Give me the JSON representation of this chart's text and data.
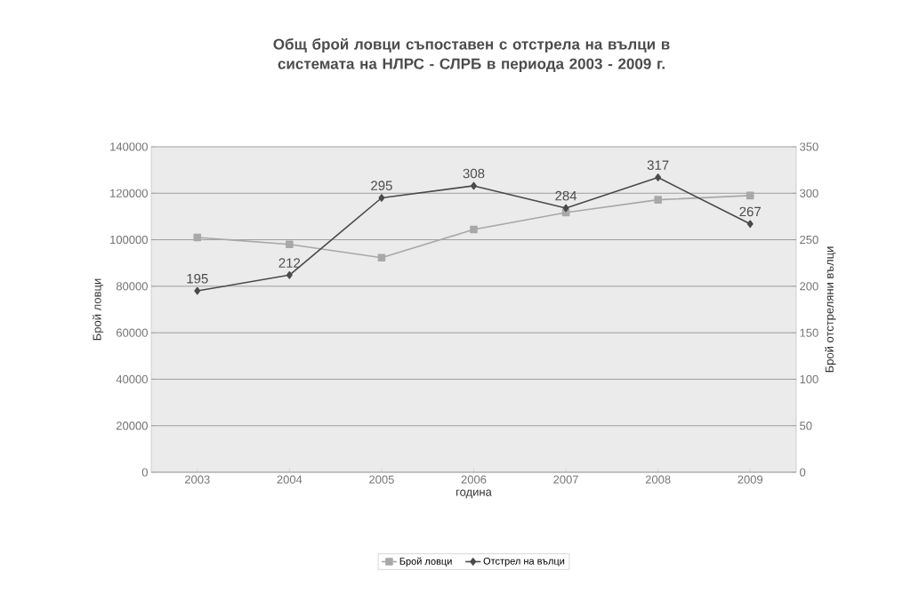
{
  "chart_data": {
    "type": "line",
    "title": "Общ брой ловци съпоставен с отстрела на вълци в системата на НЛРС - СЛРБ в периода 2003 - 2009 г.",
    "xlabel": "година",
    "ylabel": "Брой ловци",
    "y2label": "Брой отстреляни вълци",
    "categories": [
      "2003",
      "2004",
      "2005",
      "2006",
      "2007",
      "2008",
      "2009"
    ],
    "series": [
      {
        "name": "Брой ловци",
        "color": "#a8a8a8",
        "marker": "square",
        "values": [
          101000,
          98000,
          92300,
          104400,
          111700,
          117200,
          119000
        ]
      },
      {
        "name": "Отстрел на вълци",
        "color": "#4a4a4a",
        "marker": "diamond",
        "axis": "y2",
        "values": [
          195,
          212,
          295,
          308,
          284,
          317,
          267
        ],
        "value_labels": [
          "195",
          "212",
          "295",
          "308",
          "284",
          "317",
          "267"
        ]
      }
    ],
    "ylim": [
      0,
      140000
    ],
    "yticks": [
      0,
      20000,
      40000,
      60000,
      80000,
      100000,
      120000,
      140000
    ],
    "y2lim": [
      0,
      350
    ],
    "y2ticks": [
      0,
      50,
      100,
      150,
      200,
      250,
      300,
      350
    ],
    "grid": "y",
    "legend": "bottom"
  }
}
